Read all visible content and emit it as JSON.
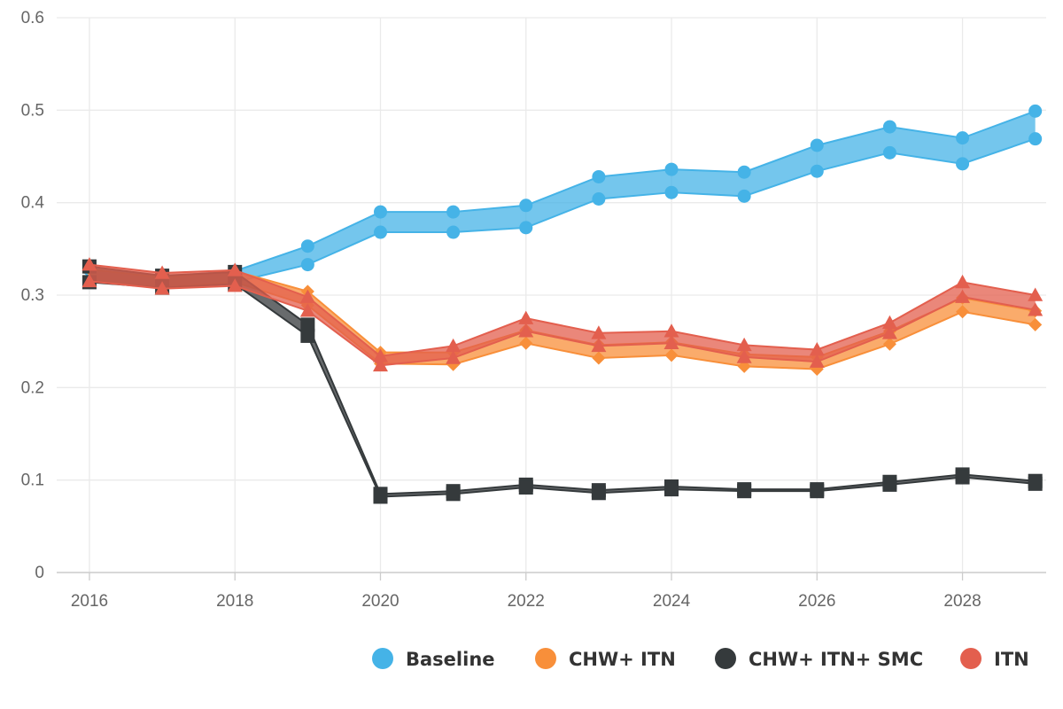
{
  "chart_data": {
    "type": "area",
    "x": [
      2016,
      2017,
      2018,
      2019,
      2020,
      2021,
      2022,
      2023,
      2024,
      2025,
      2026,
      2027,
      2028,
      2029
    ],
    "xlim": [
      2015.55,
      2029.15
    ],
    "ylim": [
      0,
      0.6
    ],
    "x_ticks": [
      "2016",
      "2018",
      "2020",
      "2022",
      "2024",
      "2026",
      "2028"
    ],
    "y_ticks": [
      "0",
      "0.1",
      "0.2",
      "0.3",
      "0.4",
      "0.5",
      "0.6"
    ],
    "grid": true,
    "legend_position": "bottom-right",
    "series": [
      {
        "name": "Baseline",
        "color": "#45b3e7",
        "marker": "circle",
        "lower": [
          0.315,
          0.309,
          0.314,
          0.333,
          0.368,
          0.368,
          0.373,
          0.404,
          0.411,
          0.407,
          0.434,
          0.454,
          0.442,
          0.469
        ],
        "upper": [
          0.328,
          0.32,
          0.326,
          0.353,
          0.39,
          0.39,
          0.397,
          0.428,
          0.436,
          0.433,
          0.462,
          0.482,
          0.47,
          0.499
        ]
      },
      {
        "name": "CHW+ ITN",
        "color": "#f88f3a",
        "marker": "diamond",
        "lower": [
          0.315,
          0.308,
          0.314,
          0.289,
          0.226,
          0.225,
          0.248,
          0.232,
          0.235,
          0.223,
          0.22,
          0.247,
          0.282,
          0.268
        ],
        "upper": [
          0.328,
          0.319,
          0.326,
          0.304,
          0.238,
          0.238,
          0.262,
          0.246,
          0.249,
          0.236,
          0.233,
          0.261,
          0.297,
          0.283
        ]
      },
      {
        "name": "CHW+ ITN+ SMC",
        "color": "#353a3c",
        "marker": "square",
        "lower": [
          0.314,
          0.308,
          0.312,
          0.256,
          0.082,
          0.085,
          0.092,
          0.086,
          0.09,
          0.088,
          0.088,
          0.095,
          0.103,
          0.096
        ],
        "upper": [
          0.331,
          0.321,
          0.325,
          0.268,
          0.085,
          0.088,
          0.095,
          0.089,
          0.093,
          0.09,
          0.09,
          0.098,
          0.106,
          0.099
        ]
      },
      {
        "name": "ITN",
        "color": "#e35f4e",
        "marker": "triangle",
        "lower": [
          0.315,
          0.307,
          0.31,
          0.283,
          0.224,
          0.232,
          0.261,
          0.245,
          0.248,
          0.233,
          0.228,
          0.259,
          0.298,
          0.284
        ],
        "upper": [
          0.333,
          0.324,
          0.327,
          0.298,
          0.234,
          0.245,
          0.275,
          0.259,
          0.261,
          0.246,
          0.241,
          0.27,
          0.314,
          0.3
        ]
      }
    ]
  }
}
